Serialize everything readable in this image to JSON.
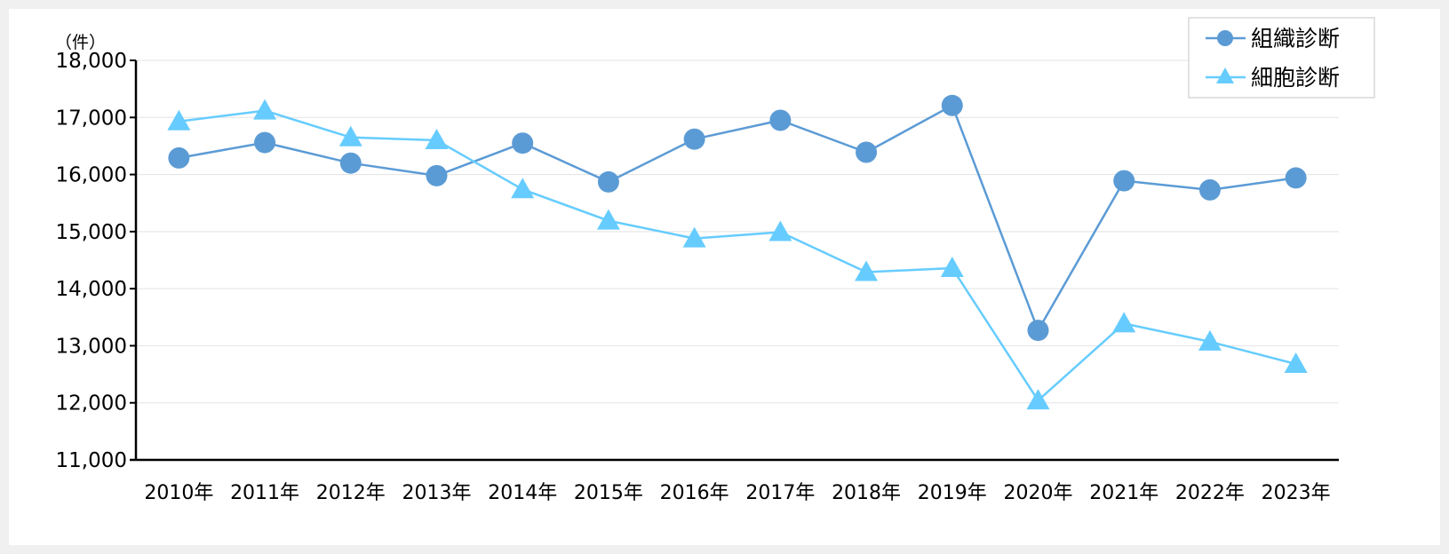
{
  "chart_data": {
    "type": "line",
    "y_unit_label": "（件）",
    "categories": [
      "2010年",
      "2011年",
      "2012年",
      "2013年",
      "2014年",
      "2015年",
      "2016年",
      "2017年",
      "2018年",
      "2019年",
      "2020年",
      "2021年",
      "2022年",
      "2023年"
    ],
    "ylim": [
      11000,
      18000
    ],
    "yticks": [
      11000,
      12000,
      13000,
      14000,
      15000,
      16000,
      17000,
      18000
    ],
    "ytick_labels": [
      "11,000",
      "12,000",
      "13,000",
      "14,000",
      "15,000",
      "16,000",
      "17,000",
      "18,000"
    ],
    "grid": true,
    "legend_position": "top-right",
    "series": [
      {
        "name": "組織診断",
        "marker": "circle",
        "color": "#5b9bd5",
        "values": [
          16290,
          16560,
          16200,
          15980,
          16550,
          15870,
          16620,
          16950,
          16390,
          17210,
          13270,
          15890,
          15730,
          15940
        ]
      },
      {
        "name": "細胞診断",
        "marker": "triangle",
        "color": "#66ccff",
        "values": [
          16930,
          17120,
          16650,
          16600,
          15740,
          15190,
          14880,
          14990,
          14290,
          14360,
          12040,
          13390,
          13070,
          12680
        ]
      }
    ]
  }
}
